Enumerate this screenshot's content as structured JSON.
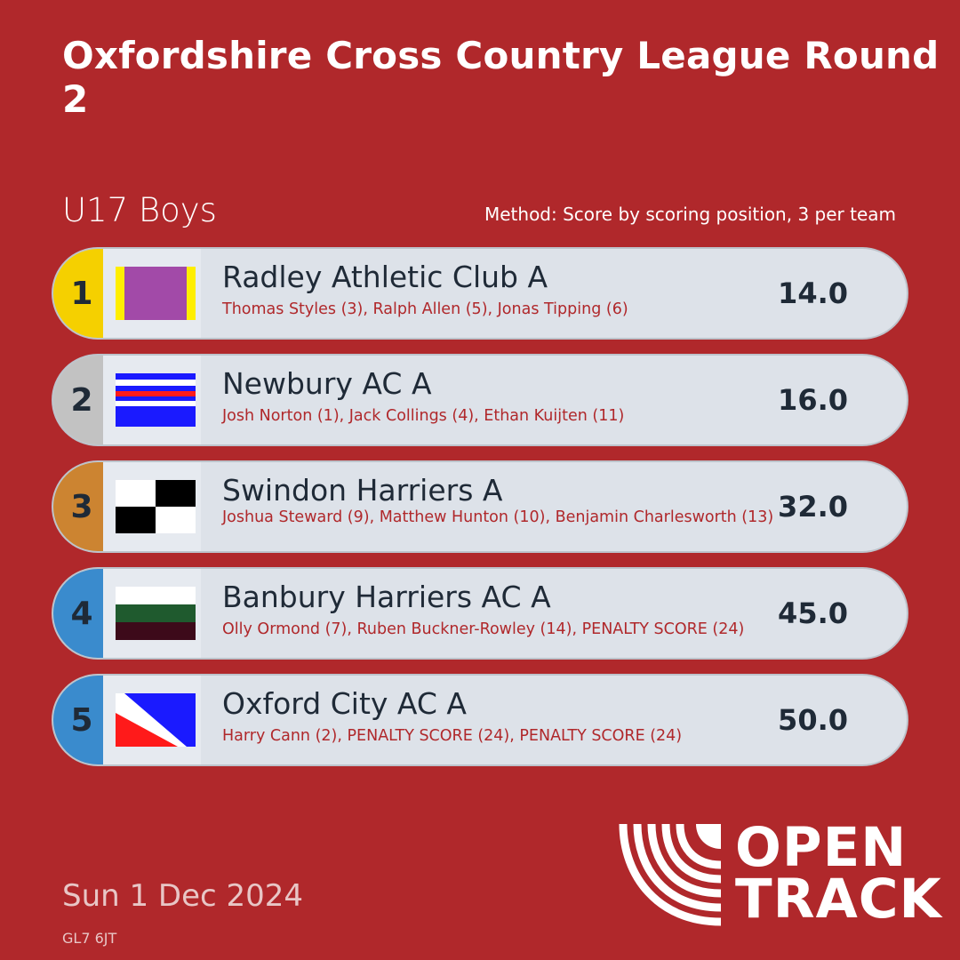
{
  "header": {
    "title": "Oxfordshire Cross Country League Round 2",
    "category": "U17 Boys",
    "method": "Method: Score by scoring position, 3 per team"
  },
  "results": [
    {
      "rank": "1",
      "team": "Radley Athletic Club A",
      "athletes": "Thomas Styles (3), Ralph Allen (5), Jonas Tipping (6)",
      "score": "14.0",
      "rank_color": "#f5d000",
      "flag_icon": "radley-flag-icon"
    },
    {
      "rank": "2",
      "team": "Newbury AC A",
      "athletes": "Josh Norton (1), Jack Collings (4), Ethan Kuijten (11)",
      "score": "16.0",
      "rank_color": "#c2c2c2",
      "flag_icon": "newbury-flag-icon"
    },
    {
      "rank": "3",
      "team": "Swindon Harriers A",
      "athletes": "Joshua Steward (9), Matthew Hunton (10), Benjamin Charlesworth (13)",
      "score": "32.0",
      "rank_color": "#cc8431",
      "flag_icon": "swindon-flag-icon"
    },
    {
      "rank": "4",
      "team": "Banbury Harriers AC A",
      "athletes": "Olly Ormond (7), Ruben Buckner-Rowley (14), PENALTY SCORE (24)",
      "score": "45.0",
      "rank_color": "#3a8bcd",
      "flag_icon": "banbury-flag-icon"
    },
    {
      "rank": "5",
      "team": "Oxford City AC A",
      "athletes": "Harry Cann (2), PENALTY SCORE (24), PENALTY SCORE (24)",
      "score": "50.0",
      "rank_color": "#3a8bcd",
      "flag_icon": "oxford-flag-icon"
    }
  ],
  "footer": {
    "date": "Sun 1 Dec 2024",
    "postcode": "GL7 6JT"
  },
  "logo": {
    "line1": "OPEN",
    "line2": "TRACK"
  },
  "colors": {
    "background": "#b0282b",
    "row_fill": "#dde2e9",
    "text_dark": "#1f2a37",
    "athlete_text": "#b0282b"
  }
}
